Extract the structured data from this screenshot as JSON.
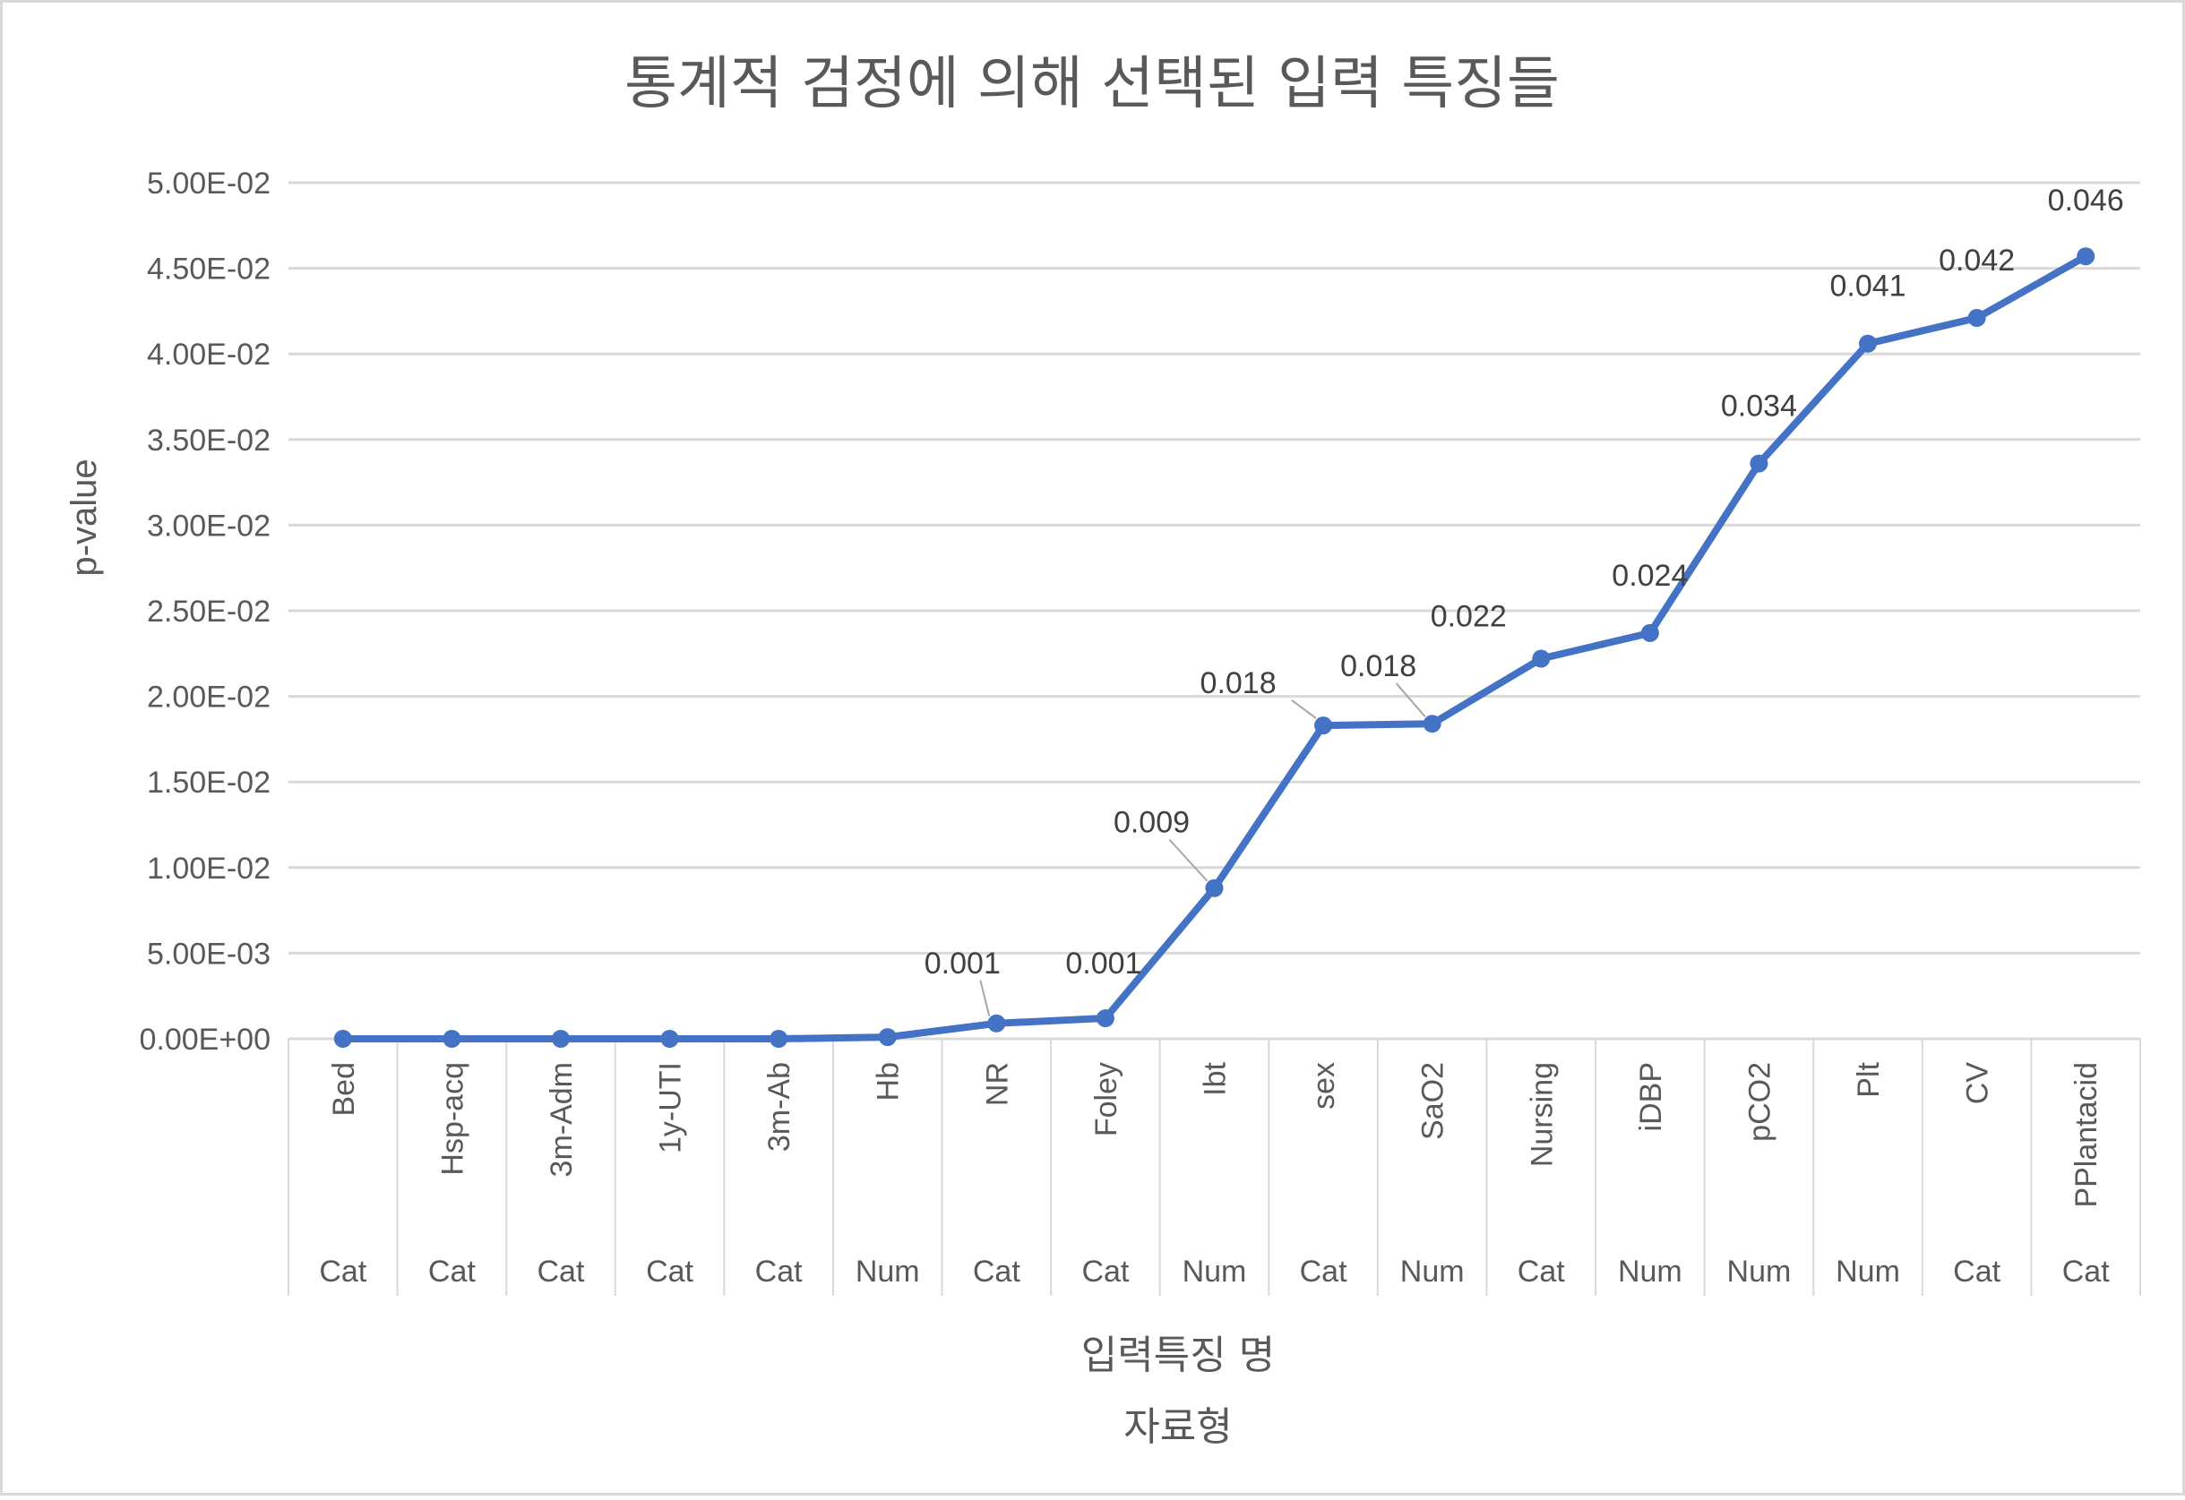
{
  "chart_data": {
    "type": "line",
    "title": "통계적 검정에 의해 선택된 입력 특징들",
    "ylabel": "p-value",
    "xlabel": "입력특징 명",
    "xlabel2": "자료형",
    "ylim": [
      0,
      0.05
    ],
    "ytick_values": [
      0,
      0.005,
      0.01,
      0.015,
      0.02,
      0.025,
      0.03,
      0.035,
      0.04,
      0.045,
      0.05
    ],
    "ytick_labels": [
      "0.00E+00",
      "5.00E-03",
      "1.00E-02",
      "1.50E-02",
      "2.00E-02",
      "2.50E-02",
      "3.00E-02",
      "3.50E-02",
      "4.00E-02",
      "4.50E-02",
      "5.00E-02"
    ],
    "grid": true,
    "line_color": "#4472C4",
    "categories": [
      "Bed",
      "Hsp-acq",
      "3m-Adm",
      "1y-UTI",
      "3m-Ab",
      "Hb",
      "NR",
      "Foley",
      "Ibt",
      "sex",
      "SaO2",
      "Nursing",
      "iDBP",
      "pCO2",
      "Plt",
      "CV",
      "PPlantacid"
    ],
    "data_types": [
      "Cat",
      "Cat",
      "Cat",
      "Cat",
      "Cat",
      "Num",
      "Cat",
      "Cat",
      "Num",
      "Cat",
      "Num",
      "Cat",
      "Num",
      "Num",
      "Num",
      "Cat",
      "Cat"
    ],
    "values": [
      0.0,
      0.0,
      0.0,
      0.0,
      0.0,
      0.0001,
      0.0009,
      0.0012,
      0.0088,
      0.0183,
      0.0184,
      0.0222,
      0.0237,
      0.0336,
      0.0406,
      0.0421,
      0.0457
    ],
    "data_labels": [
      "",
      "",
      "",
      "",
      "",
      "",
      "0.001",
      "0.001",
      "0.009",
      "0.018",
      "0.018",
      "0.022",
      "0.024",
      "0.034",
      "0.041",
      "0.042",
      "0.046"
    ]
  }
}
